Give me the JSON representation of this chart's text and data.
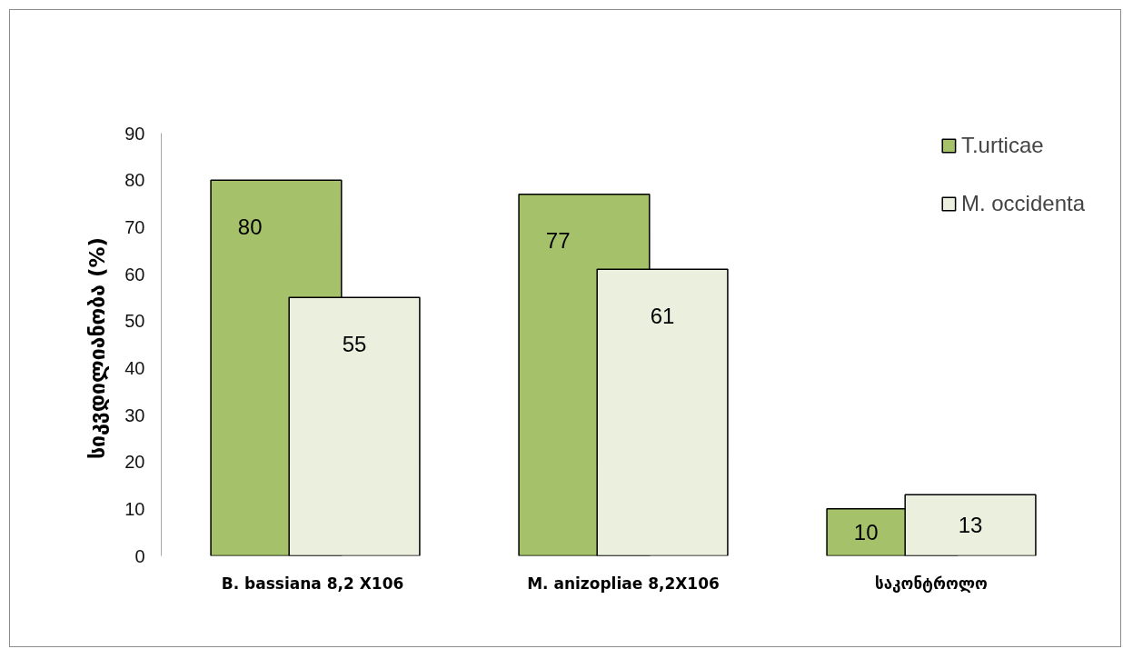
{
  "chart_data": {
    "type": "bar",
    "ylabel": "სიკვდილიანობა  (%)",
    "categories": [
      "B. bassiana  8,2 X106",
      "M. anizopliae 8,2X106",
      "საკონტროლო"
    ],
    "series": [
      {
        "name": "T.urticae",
        "color": "#a5c26b",
        "values": [
          80,
          77,
          10
        ]
      },
      {
        "name": "M. occidenta",
        "color": "#ebf0de",
        "values": [
          55,
          61,
          13
        ]
      }
    ],
    "ylim": [
      0,
      90
    ],
    "yticks": [
      0,
      10,
      20,
      30,
      40,
      50,
      60,
      70,
      80,
      90
    ],
    "legend": "top right",
    "data_labels": true
  }
}
